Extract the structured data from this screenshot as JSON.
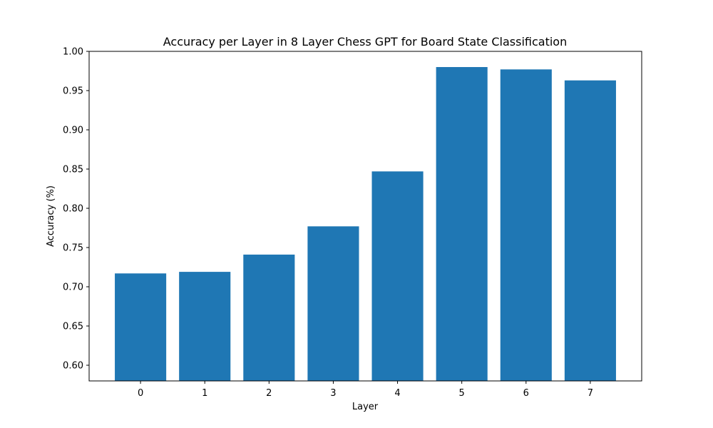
{
  "chart_data": {
    "type": "bar",
    "title": "Accuracy per Layer in 8 Layer Chess GPT for Board State Classification",
    "xlabel": "Layer",
    "ylabel": "Accuracy (%)",
    "categories": [
      "0",
      "1",
      "2",
      "3",
      "4",
      "5",
      "6",
      "7"
    ],
    "values": [
      0.717,
      0.719,
      0.741,
      0.777,
      0.847,
      0.98,
      0.977,
      0.963
    ],
    "ylim": [
      0.58,
      1.0
    ],
    "yticks": [
      0.6,
      0.65,
      0.7,
      0.75,
      0.8,
      0.85,
      0.9,
      0.95,
      1.0
    ],
    "ytick_labels": [
      "0.60",
      "0.65",
      "0.70",
      "0.75",
      "0.80",
      "0.85",
      "0.90",
      "0.95",
      "1.00"
    ],
    "grid": false,
    "bar_color": "#1f77b4"
  }
}
